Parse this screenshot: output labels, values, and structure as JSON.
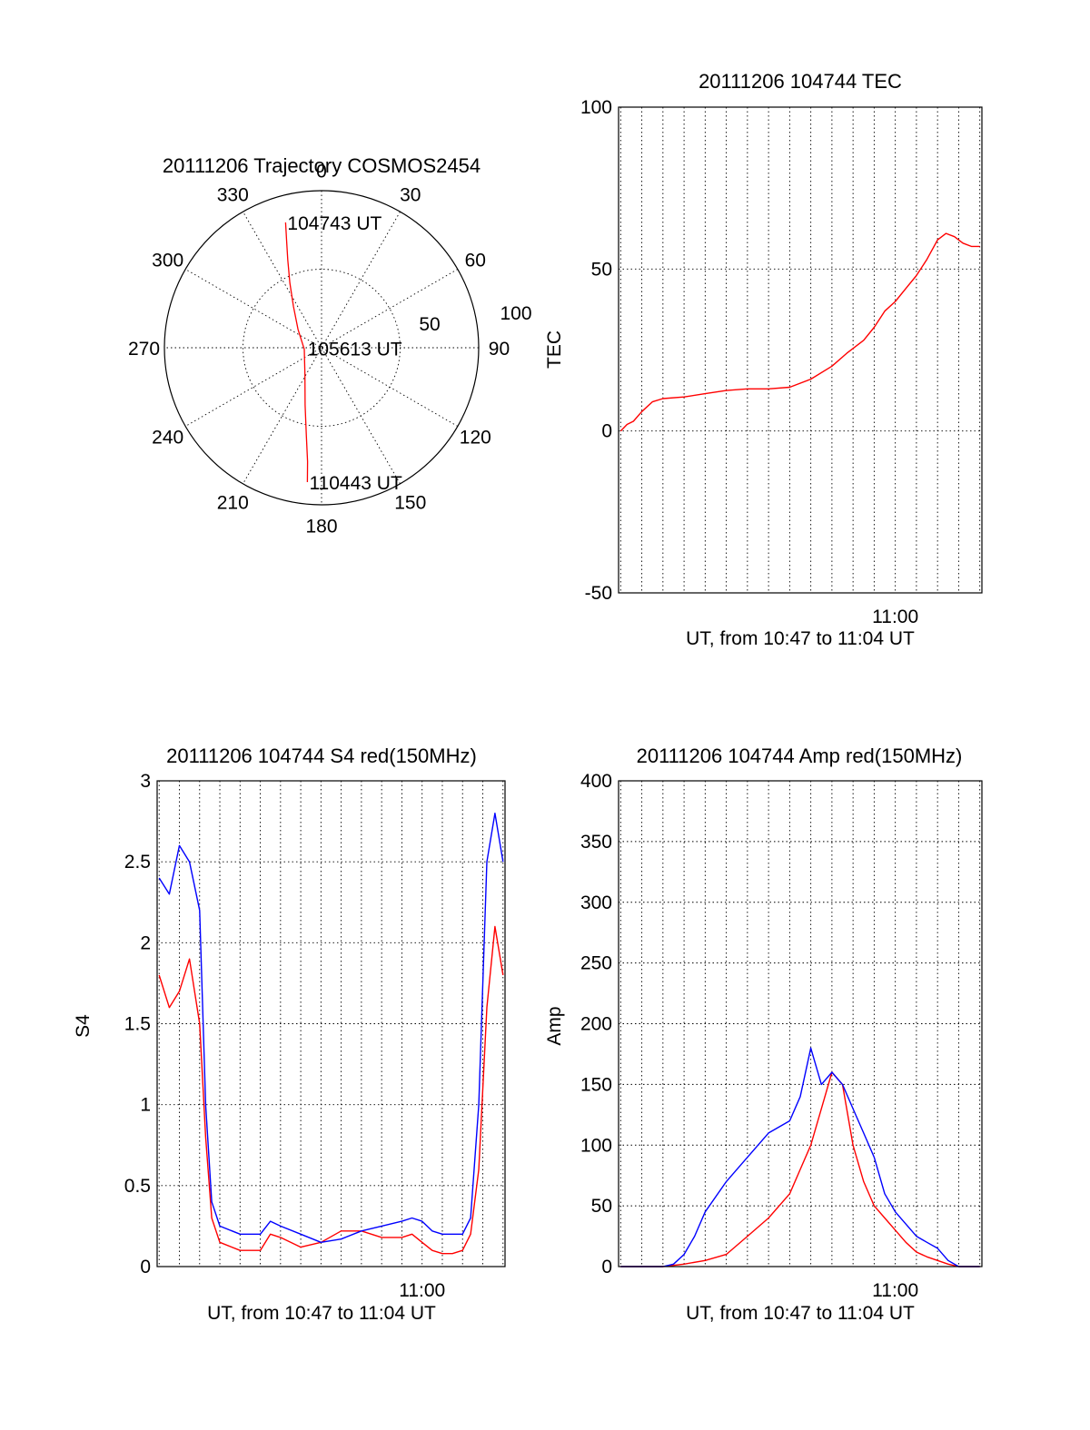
{
  "colors": {
    "red": "#ff0000",
    "blue": "#0000ff",
    "axes": "#000000",
    "background": "#ffffff"
  },
  "chart_data": [
    {
      "id": "trajectory",
      "type": "polar",
      "title": "20111206 Trajectory COSMOS2454",
      "azimuth_labels": [
        "0",
        "30",
        "60",
        "90",
        "120",
        "150",
        "180",
        "210",
        "240",
        "270",
        "300",
        "330"
      ],
      "radial_labels": [
        "50",
        "100"
      ],
      "rlim": [
        0,
        100
      ],
      "grid": true,
      "track": {
        "color": "#ff0000",
        "points": [
          {
            "az": 344,
            "r": 83
          },
          {
            "az": 342,
            "r": 72
          },
          {
            "az": 339,
            "r": 60
          },
          {
            "az": 334,
            "r": 46
          },
          {
            "az": 326,
            "r": 32
          },
          {
            "az": 308,
            "r": 19
          },
          {
            "az": 265,
            "r": 11
          },
          {
            "az": 212,
            "r": 20
          },
          {
            "az": 196,
            "r": 38
          },
          {
            "az": 190,
            "r": 56
          },
          {
            "az": 187,
            "r": 73
          },
          {
            "az": 186,
            "r": 86
          }
        ]
      },
      "annotations": [
        {
          "text": "104743 UT",
          "az": 344,
          "r": 83
        },
        {
          "text": "105613 UT",
          "az": 268,
          "r": 10
        },
        {
          "text": "110443 UT",
          "az": 186,
          "r": 86
        }
      ]
    },
    {
      "id": "tec",
      "type": "line",
      "title": "20111206 104744 TEC",
      "xlabel": "UT, from 10:47 to 11:04 UT",
      "ylabel": "TEC",
      "xlim_minutes_after_1047": [
        -0.1,
        17.1
      ],
      "x_tick": {
        "label": "11:00",
        "minutes_after_1047": 13
      },
      "ylim": [
        -50,
        100
      ],
      "yticks": [
        -50,
        0,
        50,
        100
      ],
      "grid": true,
      "series": [
        {
          "color": "#ff0000",
          "x_minutes_after_1047": [
            0.0,
            0.3,
            0.6,
            1.0,
            1.5,
            2.0,
            3.0,
            4.0,
            5.0,
            6.0,
            7.0,
            8.0,
            9.0,
            10.0,
            10.7,
            11.5,
            12.0,
            12.5,
            13.0,
            13.5,
            14.0,
            14.5,
            15.0,
            15.4,
            15.8,
            16.2,
            16.6,
            17.0
          ],
          "y": [
            0,
            2,
            3,
            6,
            9,
            10,
            10.5,
            11.5,
            12.5,
            13,
            13,
            13.5,
            16,
            20,
            24,
            28,
            32,
            37,
            40,
            44,
            48,
            53,
            59,
            61,
            60,
            58,
            57,
            57
          ]
        }
      ]
    },
    {
      "id": "s4",
      "type": "line",
      "title": "20111206 104744 S4 red(150MHz)",
      "xlabel": "UT, from 10:47 to 11:04 UT",
      "ylabel": "S4",
      "xlim_minutes_after_1047": [
        -0.1,
        17.1
      ],
      "x_tick": {
        "label": "11:00",
        "minutes_after_1047": 13
      },
      "ylim": [
        0,
        3
      ],
      "yticks": [
        "0",
        "0.5",
        "1",
        "1.5",
        "2",
        "2.5",
        "3"
      ],
      "grid": true,
      "series": [
        {
          "color": "#ff0000",
          "x_minutes_after_1047": [
            0.0,
            0.5,
            1.0,
            1.5,
            2.0,
            2.3,
            2.6,
            3.0,
            4.0,
            5.0,
            5.5,
            6.0,
            7.0,
            8.0,
            9.0,
            10.0,
            11.0,
            12.0,
            12.5,
            13.0,
            13.5,
            14.0,
            14.5,
            15.0,
            15.4,
            15.8,
            16.2,
            16.6,
            17.0
          ],
          "y": [
            1.8,
            1.6,
            1.7,
            1.9,
            1.5,
            0.8,
            0.3,
            0.15,
            0.1,
            0.1,
            0.2,
            0.18,
            0.12,
            0.15,
            0.22,
            0.22,
            0.18,
            0.18,
            0.2,
            0.15,
            0.1,
            0.08,
            0.08,
            0.1,
            0.2,
            0.6,
            1.6,
            2.1,
            1.8
          ]
        },
        {
          "color": "#0000ff",
          "x_minutes_after_1047": [
            0.0,
            0.5,
            1.0,
            1.5,
            2.0,
            2.3,
            2.6,
            3.0,
            4.0,
            5.0,
            5.5,
            6.0,
            7.0,
            8.0,
            9.0,
            10.0,
            11.0,
            12.0,
            12.5,
            13.0,
            13.5,
            14.0,
            14.5,
            15.0,
            15.4,
            15.8,
            16.2,
            16.6,
            17.0
          ],
          "y": [
            2.4,
            2.3,
            2.6,
            2.5,
            2.2,
            1.0,
            0.4,
            0.25,
            0.2,
            0.2,
            0.28,
            0.25,
            0.2,
            0.15,
            0.17,
            0.22,
            0.25,
            0.28,
            0.3,
            0.28,
            0.22,
            0.2,
            0.2,
            0.2,
            0.3,
            1.0,
            2.5,
            2.8,
            2.5
          ]
        }
      ]
    },
    {
      "id": "amp",
      "type": "line",
      "title": "20111206 104744 Amp red(150MHz)",
      "xlabel": "UT, from 10:47 to 11:04 UT",
      "ylabel": "Amp",
      "xlim_minutes_after_1047": [
        -0.1,
        17.1
      ],
      "x_tick": {
        "label": "11:00",
        "minutes_after_1047": 13
      },
      "ylim": [
        0,
        400
      ],
      "yticks": [
        0,
        50,
        100,
        150,
        200,
        250,
        300,
        350,
        400
      ],
      "grid": true,
      "series": [
        {
          "color": "#ff0000",
          "x_minutes_after_1047": [
            0.0,
            2.0,
            3.0,
            4.0,
            5.0,
            6.0,
            7.0,
            8.0,
            8.5,
            9.0,
            9.5,
            10.0,
            10.5,
            11.0,
            11.5,
            12.0,
            12.5,
            13.0,
            13.5,
            14.0,
            14.5,
            15.0,
            15.5,
            16.0,
            17.0
          ],
          "y": [
            0,
            0,
            2,
            5,
            10,
            25,
            40,
            60,
            80,
            100,
            130,
            160,
            150,
            100,
            70,
            50,
            40,
            30,
            20,
            12,
            8,
            5,
            2,
            0,
            0
          ]
        },
        {
          "color": "#0000ff",
          "x_minutes_after_1047": [
            0.0,
            2.0,
            2.5,
            3.0,
            3.5,
            4.0,
            5.0,
            6.0,
            7.0,
            8.0,
            8.5,
            9.0,
            9.5,
            10.0,
            10.5,
            11.0,
            11.5,
            12.0,
            12.5,
            13.0,
            13.5,
            14.0,
            14.5,
            15.0,
            15.5,
            16.0,
            17.0
          ],
          "y": [
            0,
            0,
            2,
            10,
            25,
            45,
            70,
            90,
            110,
            120,
            140,
            180,
            150,
            160,
            150,
            130,
            110,
            90,
            60,
            45,
            35,
            25,
            20,
            15,
            5,
            0,
            0
          ]
        }
      ]
    }
  ]
}
